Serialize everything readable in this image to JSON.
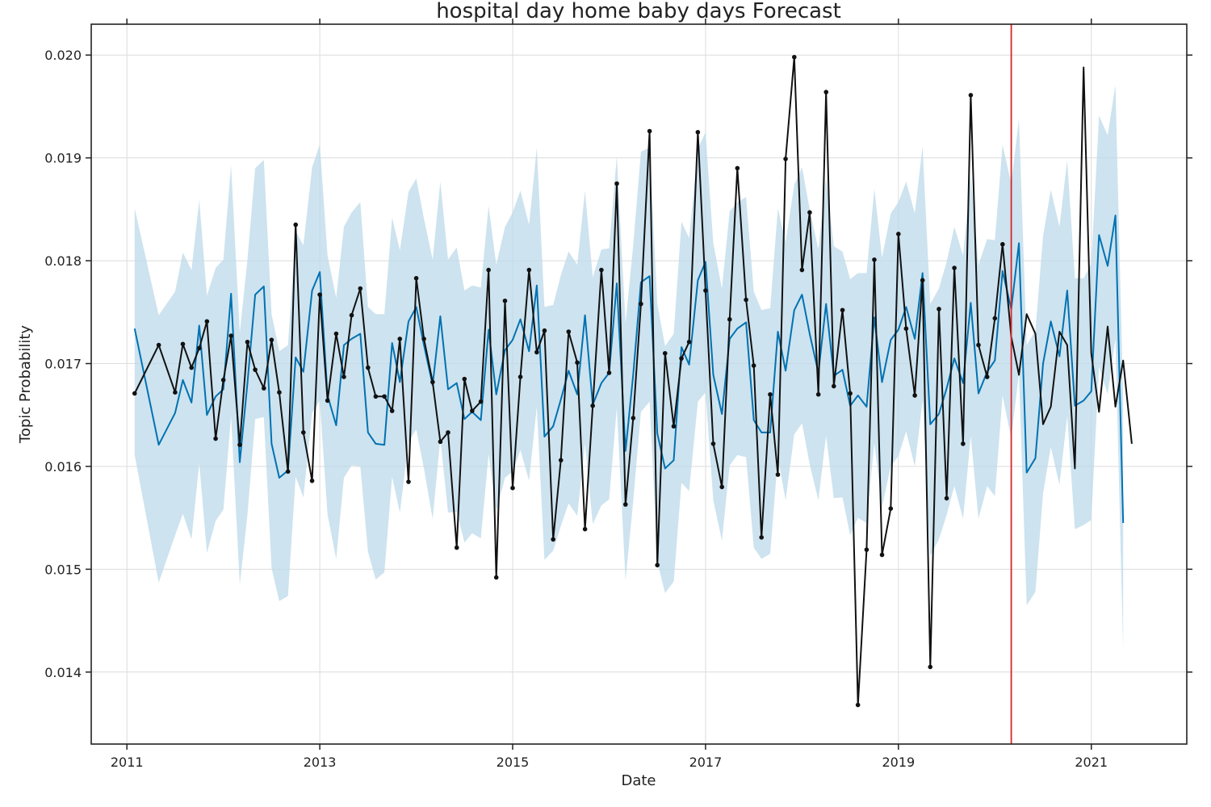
{
  "chart_data": {
    "type": "line",
    "title": "hospital day home baby days Forecast",
    "xlabel": "Date",
    "ylabel": "Topic Probability",
    "x_ticks": [
      "2011",
      "2013",
      "2015",
      "2017",
      "2019",
      "2021"
    ],
    "y_ticks": [
      "0.014",
      "0.015",
      "0.016",
      "0.017",
      "0.018",
      "0.019",
      "0.020"
    ],
    "xlim": [
      2010.63,
      2021.99
    ],
    "ylim": [
      0.0133,
      0.0203
    ],
    "grid": true,
    "changepoint_marker": 2020.17,
    "colors": {
      "observed": "#111111",
      "forecast": "#0072B2",
      "interval": "#bcd9ea",
      "marker": "#d62728"
    },
    "series": [
      {
        "key": "observed",
        "x": [
          2011.08,
          2011.33,
          2011.5,
          2011.58,
          2011.67,
          2011.75,
          2011.83,
          2011.92,
          2012.0,
          2012.08,
          2012.17,
          2012.25,
          2012.33,
          2012.42,
          2012.5,
          2012.58,
          2012.67,
          2012.75,
          2012.83,
          2012.92,
          2013.0,
          2013.08,
          2013.17,
          2013.25,
          2013.33,
          2013.42,
          2013.5,
          2013.58,
          2013.67,
          2013.75,
          2013.83,
          2013.92,
          2014.0,
          2014.08,
          2014.17,
          2014.25,
          2014.33,
          2014.42,
          2014.5,
          2014.58,
          2014.67,
          2014.75,
          2014.83,
          2014.92,
          2015.0,
          2015.08,
          2015.17,
          2015.25,
          2015.33,
          2015.42,
          2015.5,
          2015.58,
          2015.67,
          2015.75,
          2015.83,
          2015.92,
          2016.0,
          2016.08,
          2016.17,
          2016.25,
          2016.33,
          2016.42,
          2016.5,
          2016.58,
          2016.67,
          2016.75,
          2016.83,
          2016.92,
          2017.0,
          2017.08,
          2017.17,
          2017.25,
          2017.33,
          2017.42,
          2017.5,
          2017.58,
          2017.67,
          2017.75,
          2017.83,
          2017.92,
          2018.0,
          2018.08,
          2018.17,
          2018.25,
          2018.33,
          2018.42,
          2018.5,
          2018.58,
          2018.67,
          2018.75,
          2018.83,
          2018.92,
          2019.0,
          2019.08,
          2019.17,
          2019.25,
          2019.33,
          2019.42,
          2019.5,
          2019.58,
          2019.67,
          2019.75,
          2019.83,
          2019.92,
          2020.0,
          2020.08
        ],
        "values": [
          0.01671,
          0.01718,
          0.01672,
          0.01719,
          0.01696,
          0.01715,
          0.01741,
          0.01627,
          0.01684,
          0.01727,
          0.01621,
          0.01721,
          0.01694,
          0.01676,
          0.01723,
          0.01672,
          0.01595,
          0.01835,
          0.01633,
          0.01586,
          0.01767,
          0.01664,
          0.01729,
          0.01687,
          0.01747,
          0.01773,
          0.01696,
          0.01668,
          0.01668,
          0.01654,
          0.01724,
          0.01585,
          0.01783,
          0.01724,
          0.01682,
          0.01624,
          0.01633,
          0.01521,
          0.01685,
          0.01654,
          0.01663,
          0.01791,
          0.01492,
          0.01761,
          0.01579,
          0.01687,
          0.01791,
          0.01711,
          0.01732,
          0.01529,
          0.01606,
          0.01731,
          0.01701,
          0.01539,
          0.01659,
          0.01791,
          0.01691,
          0.01875,
          0.01563,
          0.01647,
          0.01758,
          0.01926,
          0.01504,
          0.0171,
          0.01639,
          0.01705,
          0.01721,
          0.01925,
          0.01771,
          0.01622,
          0.0158,
          0.01743,
          0.0189,
          0.01762,
          0.01698,
          0.01531,
          0.0167,
          0.01592,
          0.01899,
          0.01998,
          0.01791,
          0.01847,
          0.0167,
          0.01964,
          0.01678,
          0.01752,
          0.01671,
          0.01368,
          0.01519,
          0.01801,
          0.01514,
          0.01559,
          0.01826,
          0.01734,
          0.01669,
          0.01781,
          0.01405,
          0.01753,
          0.01569,
          0.01793,
          0.01622,
          0.01961,
          0.01718,
          0.01687,
          0.01744,
          0.01816
        ]
      },
      {
        "key": "observed_tail",
        "x": [
          2020.08,
          2020.17,
          2020.25,
          2020.33,
          2020.42,
          2020.5,
          2020.58,
          2020.67,
          2020.75,
          2020.83,
          2020.92,
          2021.0,
          2021.08,
          2021.17,
          2021.25,
          2021.33,
          2021.42
        ],
        "values": [
          0.01816,
          0.01726,
          0.01689,
          0.01748,
          0.01729,
          0.01641,
          0.01658,
          0.01731,
          0.01718,
          0.01598,
          0.01988,
          0.0171,
          0.01653,
          0.01736,
          0.01658,
          0.01703,
          0.01622
        ]
      },
      {
        "key": "forecast",
        "x": [
          2011.08,
          2011.33,
          2011.5,
          2011.58,
          2011.67,
          2011.75,
          2011.83,
          2011.92,
          2012.0,
          2012.08,
          2012.17,
          2012.25,
          2012.33,
          2012.42,
          2012.5,
          2012.58,
          2012.67,
          2012.75,
          2012.83,
          2012.92,
          2013.0,
          2013.08,
          2013.17,
          2013.25,
          2013.33,
          2013.42,
          2013.5,
          2013.58,
          2013.67,
          2013.75,
          2013.83,
          2013.92,
          2014.0,
          2014.08,
          2014.17,
          2014.25,
          2014.33,
          2014.42,
          2014.5,
          2014.58,
          2014.67,
          2014.75,
          2014.83,
          2014.92,
          2015.0,
          2015.08,
          2015.17,
          2015.25,
          2015.33,
          2015.42,
          2015.5,
          2015.58,
          2015.67,
          2015.75,
          2015.83,
          2015.92,
          2016.0,
          2016.08,
          2016.17,
          2016.25,
          2016.33,
          2016.42,
          2016.5,
          2016.58,
          2016.67,
          2016.75,
          2016.83,
          2016.92,
          2017.0,
          2017.08,
          2017.17,
          2017.25,
          2017.33,
          2017.42,
          2017.5,
          2017.58,
          2017.67,
          2017.75,
          2017.83,
          2017.92,
          2018.0,
          2018.08,
          2018.17,
          2018.25,
          2018.33,
          2018.42,
          2018.5,
          2018.58,
          2018.67,
          2018.75,
          2018.83,
          2018.92,
          2019.0,
          2019.08,
          2019.17,
          2019.25,
          2019.33,
          2019.42,
          2019.5,
          2019.58,
          2019.67,
          2019.75,
          2019.83,
          2019.92,
          2020.0,
          2020.08,
          2020.17,
          2020.25,
          2020.33,
          2020.42,
          2020.5,
          2020.58,
          2020.67,
          2020.75,
          2020.83,
          2020.92,
          2021.0,
          2021.08,
          2021.17,
          2021.25,
          2021.33
        ],
        "values": [
          0.01734,
          0.01621,
          0.01652,
          0.01684,
          0.01662,
          0.01737,
          0.0165,
          0.01668,
          0.01675,
          0.01768,
          0.01604,
          0.01681,
          0.01767,
          0.01775,
          0.01622,
          0.01589,
          0.01596,
          0.01706,
          0.01692,
          0.01771,
          0.01789,
          0.01669,
          0.0164,
          0.01718,
          0.01724,
          0.01729,
          0.01633,
          0.01622,
          0.01621,
          0.0172,
          0.01682,
          0.01741,
          0.01755,
          0.01718,
          0.01679,
          0.01746,
          0.01675,
          0.01681,
          0.01646,
          0.01653,
          0.01645,
          0.01733,
          0.0167,
          0.01713,
          0.01723,
          0.01743,
          0.01712,
          0.01776,
          0.01629,
          0.01639,
          0.01665,
          0.01693,
          0.0167,
          0.01747,
          0.0166,
          0.01681,
          0.01691,
          0.01778,
          0.01615,
          0.01689,
          0.01779,
          0.01785,
          0.01632,
          0.01598,
          0.01606,
          0.01716,
          0.01699,
          0.01781,
          0.01799,
          0.01689,
          0.01651,
          0.01724,
          0.01734,
          0.0174,
          0.01645,
          0.01633,
          0.01633,
          0.01731,
          0.01693,
          0.01752,
          0.01767,
          0.01729,
          0.01691,
          0.01758,
          0.01688,
          0.01694,
          0.01659,
          0.01669,
          0.01658,
          0.01745,
          0.01682,
          0.01723,
          0.01733,
          0.01755,
          0.01724,
          0.01788,
          0.01641,
          0.01651,
          0.01676,
          0.01705,
          0.01681,
          0.01759,
          0.01671,
          0.01692,
          0.01703,
          0.0179,
          0.01753,
          0.01817,
          0.01594,
          0.01608,
          0.017,
          0.01741,
          0.01707,
          0.01771,
          0.01659,
          0.01664,
          0.01673,
          0.01825,
          0.01795,
          0.01844,
          0.01545
        ]
      }
    ],
    "interval": {
      "x": [
        2011.08,
        2011.33,
        2011.5,
        2011.58,
        2011.67,
        2011.75,
        2011.83,
        2011.92,
        2012.0,
        2012.08,
        2012.17,
        2012.25,
        2012.33,
        2012.42,
        2012.5,
        2012.58,
        2012.67,
        2012.75,
        2012.83,
        2012.92,
        2013.0,
        2013.08,
        2013.17,
        2013.25,
        2013.33,
        2013.42,
        2013.5,
        2013.58,
        2013.67,
        2013.75,
        2013.83,
        2013.92,
        2014.0,
        2014.08,
        2014.17,
        2014.25,
        2014.33,
        2014.42,
        2014.5,
        2014.58,
        2014.67,
        2014.75,
        2014.83,
        2014.92,
        2015.0,
        2015.08,
        2015.17,
        2015.25,
        2015.33,
        2015.42,
        2015.5,
        2015.58,
        2015.67,
        2015.75,
        2015.83,
        2015.92,
        2016.0,
        2016.08,
        2016.17,
        2016.25,
        2016.33,
        2016.42,
        2016.5,
        2016.58,
        2016.67,
        2016.75,
        2016.83,
        2016.92,
        2017.0,
        2017.08,
        2017.17,
        2017.25,
        2017.33,
        2017.42,
        2017.5,
        2017.58,
        2017.67,
        2017.75,
        2017.83,
        2017.92,
        2018.0,
        2018.08,
        2018.17,
        2018.25,
        2018.33,
        2018.42,
        2018.5,
        2018.58,
        2018.67,
        2018.75,
        2018.83,
        2018.92,
        2019.0,
        2019.08,
        2019.17,
        2019.25,
        2019.33,
        2019.42,
        2019.5,
        2019.58,
        2019.67,
        2019.75,
        2019.83,
        2019.92,
        2020.0,
        2020.08,
        2020.17,
        2020.25,
        2020.33,
        2020.42,
        2020.5,
        2020.58,
        2020.67,
        2020.75,
        2020.83,
        2020.92,
        2021.0,
        2021.08,
        2021.17,
        2021.25,
        2021.33
      ],
      "upper": [
        0.01851,
        0.01747,
        0.0177,
        0.01808,
        0.01791,
        0.01859,
        0.01766,
        0.01793,
        0.01801,
        0.01893,
        0.0173,
        0.01801,
        0.0189,
        0.01898,
        0.01748,
        0.01712,
        0.01718,
        0.01829,
        0.01815,
        0.01891,
        0.01913,
        0.01805,
        0.01764,
        0.01833,
        0.01847,
        0.01857,
        0.01755,
        0.01748,
        0.01748,
        0.01842,
        0.0181,
        0.01867,
        0.0188,
        0.01841,
        0.01801,
        0.01877,
        0.01801,
        0.01813,
        0.01771,
        0.01776,
        0.01774,
        0.01853,
        0.01796,
        0.01833,
        0.01847,
        0.01868,
        0.01835,
        0.0191,
        0.01755,
        0.01757,
        0.01786,
        0.01809,
        0.01796,
        0.01868,
        0.01784,
        0.01811,
        0.01812,
        0.01902,
        0.01739,
        0.01815,
        0.01906,
        0.0191,
        0.01758,
        0.01717,
        0.01729,
        0.01838,
        0.01822,
        0.01909,
        0.01925,
        0.01817,
        0.01773,
        0.01848,
        0.01857,
        0.01862,
        0.0177,
        0.01752,
        0.01754,
        0.01851,
        0.01818,
        0.01874,
        0.01891,
        0.0185,
        0.01811,
        0.01881,
        0.01814,
        0.01809,
        0.01782,
        0.01788,
        0.01788,
        0.0187,
        0.01803,
        0.01846,
        0.01857,
        0.01877,
        0.01846,
        0.01911,
        0.01758,
        0.01773,
        0.01799,
        0.01833,
        0.01805,
        0.01884,
        0.01796,
        0.01821,
        0.0182,
        0.01913,
        0.01875,
        0.01938,
        0.01718,
        0.01732,
        0.01824,
        0.01869,
        0.01833,
        0.01898,
        0.01783,
        0.01783,
        0.01797,
        0.01941,
        0.01922,
        0.01971,
        0.01665
      ],
      "lower": [
        0.01611,
        0.01487,
        0.01533,
        0.01554,
        0.01529,
        0.01603,
        0.01516,
        0.01547,
        0.01558,
        0.01649,
        0.01485,
        0.01553,
        0.01646,
        0.01648,
        0.01501,
        0.01469,
        0.01474,
        0.0159,
        0.0157,
        0.01652,
        0.01664,
        0.01553,
        0.0151,
        0.01589,
        0.01601,
        0.016,
        0.01517,
        0.0149,
        0.01497,
        0.0159,
        0.01555,
        0.01624,
        0.01636,
        0.01598,
        0.01549,
        0.01627,
        0.01555,
        0.01556,
        0.01526,
        0.01535,
        0.0153,
        0.01612,
        0.01556,
        0.01589,
        0.01595,
        0.01616,
        0.01586,
        0.01658,
        0.01509,
        0.01518,
        0.01542,
        0.01564,
        0.01552,
        0.01622,
        0.01544,
        0.01562,
        0.01568,
        0.01657,
        0.01489,
        0.01566,
        0.01653,
        0.01663,
        0.01507,
        0.01477,
        0.01488,
        0.01584,
        0.01576,
        0.01663,
        0.01672,
        0.01567,
        0.01528,
        0.01601,
        0.01611,
        0.01609,
        0.01521,
        0.0151,
        0.01515,
        0.01609,
        0.01567,
        0.01631,
        0.01642,
        0.01602,
        0.01567,
        0.0163,
        0.01569,
        0.0157,
        0.01533,
        0.0155,
        0.01545,
        0.01623,
        0.0156,
        0.016,
        0.0161,
        0.01634,
        0.016,
        0.01664,
        0.01513,
        0.01529,
        0.01553,
        0.01581,
        0.01549,
        0.0163,
        0.01549,
        0.01581,
        0.01571,
        0.01669,
        0.01627,
        0.01691,
        0.01465,
        0.01478,
        0.01574,
        0.01619,
        0.01582,
        0.01649,
        0.01539,
        0.01543,
        0.01548,
        0.01697,
        0.0167,
        0.01724,
        0.01421
      ]
    }
  }
}
